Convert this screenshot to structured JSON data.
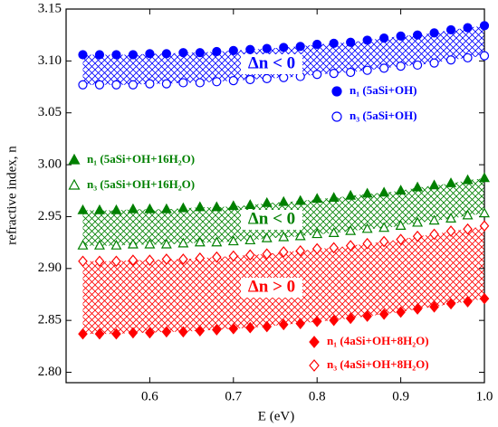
{
  "chart_data": {
    "type": "scatter",
    "xlabel": "E (eV)",
    "ylabel": "refractive index, n",
    "xlim": [
      0.5,
      1.0
    ],
    "ylim": [
      2.79,
      3.15
    ],
    "xticks": [
      0.6,
      0.7,
      0.8,
      0.9,
      {
        "value": 1.0,
        "label": "1.0"
      }
    ],
    "yticks": [
      {
        "value": 2.8,
        "label": "2.80"
      },
      2.85,
      {
        "value": 2.9,
        "label": "2.90"
      },
      2.95,
      {
        "value": 3.0,
        "label": "3.00"
      },
      3.05,
      {
        "value": 3.1,
        "label": "3.10"
      },
      3.15
    ],
    "x": [
      0.52,
      0.54,
      0.56,
      0.58,
      0.6,
      0.62,
      0.64,
      0.66,
      0.68,
      0.7,
      0.72,
      0.74,
      0.76,
      0.78,
      0.8,
      0.82,
      0.84,
      0.86,
      0.88,
      0.9,
      0.92,
      0.94,
      0.96,
      0.98,
      1.0
    ],
    "series": [
      {
        "name": "n₁ (5aSi+OH)",
        "color": "#0000ff",
        "marker": "circle",
        "filled": true,
        "values": [
          3.106,
          3.106,
          3.106,
          3.106,
          3.107,
          3.107,
          3.108,
          3.108,
          3.109,
          3.11,
          3.111,
          3.112,
          3.113,
          3.114,
          3.116,
          3.117,
          3.118,
          3.12,
          3.122,
          3.124,
          3.125,
          3.127,
          3.13,
          3.132,
          3.134
        ]
      },
      {
        "name": "n₃ (5aSi+OH)",
        "color": "#0000ff",
        "marker": "circle",
        "filled": false,
        "values": [
          3.077,
          3.077,
          3.077,
          3.077,
          3.078,
          3.078,
          3.079,
          3.079,
          3.08,
          3.081,
          3.082,
          3.083,
          3.084,
          3.085,
          3.087,
          3.088,
          3.089,
          3.091,
          3.093,
          3.095,
          3.096,
          3.098,
          3.101,
          3.103,
          3.105
        ]
      },
      {
        "name": "n₁ (5aSi+OH+16H₂O)",
        "color": "#008000",
        "marker": "triangle",
        "filled": true,
        "values": [
          2.956,
          2.956,
          2.956,
          2.957,
          2.957,
          2.957,
          2.958,
          2.959,
          2.959,
          2.96,
          2.961,
          2.963,
          2.964,
          2.965,
          2.967,
          2.968,
          2.97,
          2.972,
          2.973,
          2.975,
          2.978,
          2.98,
          2.982,
          2.985,
          2.987
        ]
      },
      {
        "name": "n₃ (5aSi+OH+16H₂O)",
        "color": "#008000",
        "marker": "triangle",
        "filled": false,
        "values": [
          2.922,
          2.922,
          2.922,
          2.923,
          2.923,
          2.923,
          2.924,
          2.925,
          2.925,
          2.926,
          2.927,
          2.929,
          2.93,
          2.931,
          2.933,
          2.934,
          2.936,
          2.938,
          2.939,
          2.941,
          2.944,
          2.946,
          2.948,
          2.951,
          2.953
        ]
      },
      {
        "name": "n₁ (4aSi+OH+8H₂O)",
        "color": "#ff0000",
        "marker": "diamond",
        "filled": true,
        "values": [
          2.837,
          2.837,
          2.837,
          2.838,
          2.838,
          2.839,
          2.839,
          2.84,
          2.841,
          2.842,
          2.843,
          2.844,
          2.846,
          2.847,
          2.849,
          2.85,
          2.852,
          2.854,
          2.856,
          2.858,
          2.861,
          2.863,
          2.866,
          2.868,
          2.871
        ]
      },
      {
        "name": "n₃ (4aSi+OH+8H₂O)",
        "color": "#ff0000",
        "marker": "diamond",
        "filled": false,
        "values": [
          2.907,
          2.907,
          2.907,
          2.908,
          2.908,
          2.909,
          2.909,
          2.91,
          2.911,
          2.912,
          2.913,
          2.914,
          2.916,
          2.917,
          2.919,
          2.92,
          2.922,
          2.924,
          2.926,
          2.928,
          2.931,
          2.933,
          2.936,
          2.938,
          2.941
        ]
      }
    ],
    "annotations": [
      {
        "text": "Δn < 0",
        "color": "#0000ff"
      },
      {
        "text": "Δn < 0",
        "color": "#008000"
      },
      {
        "text": "Δn > 0",
        "color": "#ff0000"
      }
    ]
  }
}
